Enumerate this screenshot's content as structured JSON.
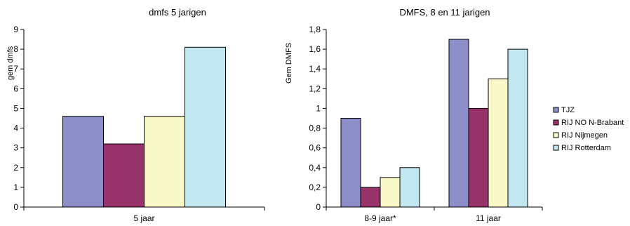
{
  "chart_data": [
    {
      "type": "bar",
      "title": "dmfs 5 jarigen",
      "ylabel": "gem dmfs",
      "xlabel": "",
      "ylim": [
        0,
        9
      ],
      "yticks": [
        "0",
        "1",
        "2",
        "3",
        "4",
        "5",
        "6",
        "7",
        "8",
        "9"
      ],
      "categories": [
        "5 jaar"
      ],
      "series": [
        {
          "name": "TJZ",
          "values": [
            4.6
          ]
        },
        {
          "name": "RIJ NO N-Brabant",
          "values": [
            3.2
          ]
        },
        {
          "name": "RIJ Nijmegen",
          "values": [
            4.6
          ]
        },
        {
          "name": "RIJ Rotterdam",
          "values": [
            8.1
          ]
        }
      ],
      "grid": false,
      "legend": "none"
    },
    {
      "type": "bar",
      "title": "DMFS, 8 en 11 jarigen",
      "ylabel": "Gem DMFS",
      "xlabel": "",
      "ylim": [
        0,
        1.8
      ],
      "yticks": [
        "0",
        "0,2",
        "0,4",
        "0,6",
        "0,8",
        "1",
        "1,2",
        "1,4",
        "1,6",
        "1,8"
      ],
      "categories": [
        "8-9 jaar*",
        "11 jaar"
      ],
      "series": [
        {
          "name": "TJZ",
          "values": [
            0.9,
            1.7
          ]
        },
        {
          "name": "RIJ NO N-Brabant",
          "values": [
            0.2,
            1.0
          ]
        },
        {
          "name": "RIJ Nijmegen",
          "values": [
            0.3,
            1.3
          ]
        },
        {
          "name": "RIJ Rotterdam",
          "values": [
            0.4,
            1.6
          ]
        }
      ],
      "grid": false,
      "legend": "right"
    }
  ],
  "colors": {
    "series": [
      "#8c8fc7",
      "#97336a",
      "#f9f8c9",
      "#c2e7f0"
    ],
    "stroke": "#000000"
  }
}
